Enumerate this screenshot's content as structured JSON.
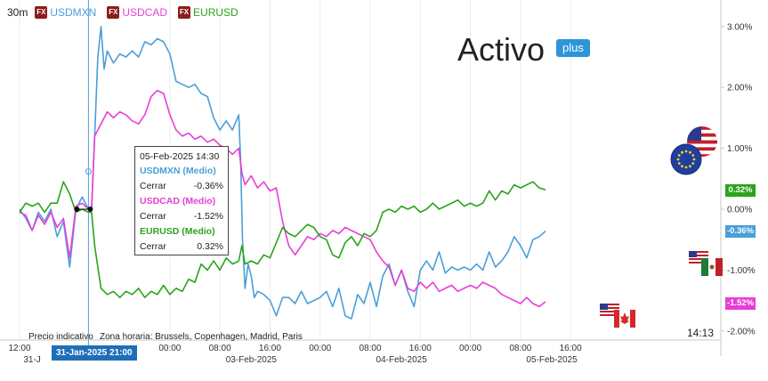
{
  "header": {
    "interval": "30m",
    "fx_badge": "FX",
    "legend": [
      {
        "symbol": "USDMXN",
        "color": "#4a9fd8"
      },
      {
        "symbol": "USDCAD",
        "color": "#e83ed6"
      },
      {
        "symbol": "EURUSD",
        "color": "#2aa31a"
      }
    ]
  },
  "brand": {
    "name": "Activo",
    "badge": "plus"
  },
  "tooltip": {
    "datetime": "05-Feb-2025 14:30",
    "entries": [
      {
        "name": "USDMXN (Medio)",
        "label": "Cerrar",
        "value": "-0.36%",
        "color": "#4a9fd8"
      },
      {
        "name": "USDCAD (Medio)",
        "label": "Cerrar",
        "value": "-1.52%",
        "color": "#e83ed6"
      },
      {
        "name": "EURUSD (Medio)",
        "label": "Cerrar",
        "value": "0.32%",
        "color": "#2aa31a"
      }
    ]
  },
  "footer": {
    "indicative": "Precio indicativo",
    "timezone": "Zona horaria: Brussels, Copenhagen, Madrid, Paris",
    "current_time": "14:13",
    "cursor_label": "31-Jan-2025 21:00"
  },
  "chart_data": {
    "type": "line",
    "y_unit": "%",
    "ylim": [
      -2.1,
      3.2
    ],
    "y_ticks": [
      "3.00%",
      "2.00%",
      "1.00%",
      "0.00%",
      "-1.00%",
      "-2.00%"
    ],
    "y_tick_values": [
      3,
      2,
      1,
      0,
      -1,
      -2
    ],
    "x_range": [
      0,
      112
    ],
    "x_ticks": [
      {
        "label": "12:00",
        "x": 0
      },
      {
        "label": "00:00",
        "x": 24
      },
      {
        "label": "08:00",
        "x": 32
      },
      {
        "label": "16:00",
        "x": 40
      },
      {
        "label": "00:00",
        "x": 48
      },
      {
        "label": "08:00",
        "x": 56
      },
      {
        "label": "16:00",
        "x": 64
      },
      {
        "label": "00:00",
        "x": 72
      },
      {
        "label": "08:00",
        "x": 80
      },
      {
        "label": "16:00",
        "x": 88
      }
    ],
    "x_date_labels": [
      {
        "label": "31-J",
        "x": 2
      },
      {
        "label": "03-Feb-2025",
        "x": 37
      },
      {
        "label": "04-Feb-2025",
        "x": 61
      },
      {
        "label": "05-Feb-2025",
        "x": 85
      }
    ],
    "cursor_x": 11,
    "series": [
      {
        "name": "USDMXN",
        "color": "#4a9fd8",
        "last_label": "-0.36%",
        "points": [
          [
            0,
            0.0
          ],
          [
            1,
            -0.15
          ],
          [
            2,
            -0.35
          ],
          [
            3,
            -0.05
          ],
          [
            4,
            -0.2
          ],
          [
            5,
            0.0
          ],
          [
            6,
            -0.45
          ],
          [
            7,
            -0.2
          ],
          [
            8,
            -0.95
          ],
          [
            9,
            0.0
          ],
          [
            10,
            0.2
          ],
          [
            11,
            0.0
          ],
          [
            11.5,
            0.0
          ],
          [
            12,
            1.2
          ],
          [
            12.5,
            2.5
          ],
          [
            13,
            3.0
          ],
          [
            13.5,
            2.3
          ],
          [
            14,
            2.6
          ],
          [
            15,
            2.4
          ],
          [
            16,
            2.55
          ],
          [
            17,
            2.5
          ],
          [
            18,
            2.6
          ],
          [
            19,
            2.5
          ],
          [
            20,
            2.75
          ],
          [
            21,
            2.7
          ],
          [
            22,
            2.8
          ],
          [
            23,
            2.75
          ],
          [
            24,
            2.55
          ],
          [
            25,
            2.1
          ],
          [
            26,
            2.05
          ],
          [
            27,
            2.0
          ],
          [
            28,
            2.05
          ],
          [
            29,
            1.9
          ],
          [
            30,
            1.85
          ],
          [
            31,
            1.5
          ],
          [
            32,
            1.3
          ],
          [
            33,
            1.45
          ],
          [
            34,
            1.3
          ],
          [
            35,
            1.55
          ],
          [
            35.3,
            0.8
          ],
          [
            35.6,
            -0.5
          ],
          [
            36,
            -1.3
          ],
          [
            36.5,
            -0.9
          ],
          [
            37,
            -1.1
          ],
          [
            37.5,
            -1.45
          ],
          [
            38,
            -1.35
          ],
          [
            39,
            -1.4
          ],
          [
            40,
            -1.5
          ],
          [
            41,
            -1.75
          ],
          [
            42,
            -1.45
          ],
          [
            43,
            -1.45
          ],
          [
            44,
            -1.55
          ],
          [
            45,
            -1.35
          ],
          [
            46,
            -1.55
          ],
          [
            47,
            -1.5
          ],
          [
            48,
            -1.45
          ],
          [
            49,
            -1.35
          ],
          [
            50,
            -1.6
          ],
          [
            51,
            -1.3
          ],
          [
            52,
            -1.75
          ],
          [
            53,
            -1.8
          ],
          [
            54,
            -1.4
          ],
          [
            55,
            -1.55
          ],
          [
            56,
            -1.2
          ],
          [
            57,
            -1.6
          ],
          [
            58,
            -1.1
          ],
          [
            59,
            -0.9
          ],
          [
            60,
            -1.25
          ],
          [
            61,
            -1.0
          ],
          [
            62,
            -1.35
          ],
          [
            63,
            -1.6
          ],
          [
            64,
            -1.0
          ],
          [
            65,
            -0.85
          ],
          [
            66,
            -1.0
          ],
          [
            67,
            -0.7
          ],
          [
            68,
            -1.05
          ],
          [
            69,
            -0.95
          ],
          [
            70,
            -1.0
          ],
          [
            71,
            -0.95
          ],
          [
            72,
            -1.0
          ],
          [
            73,
            -0.9
          ],
          [
            74,
            -1.0
          ],
          [
            75,
            -0.7
          ],
          [
            76,
            -0.95
          ],
          [
            77,
            -0.85
          ],
          [
            78,
            -0.7
          ],
          [
            79,
            -0.45
          ],
          [
            80,
            -0.6
          ],
          [
            81,
            -0.8
          ],
          [
            82,
            -0.5
          ],
          [
            83,
            -0.45
          ],
          [
            84,
            -0.36
          ]
        ]
      },
      {
        "name": "USDCAD",
        "color": "#e83ed6",
        "last_label": "-1.52%",
        "points": [
          [
            0,
            -0.05
          ],
          [
            1,
            -0.1
          ],
          [
            2,
            -0.35
          ],
          [
            3,
            -0.1
          ],
          [
            4,
            -0.25
          ],
          [
            5,
            -0.05
          ],
          [
            6,
            -0.3
          ],
          [
            7,
            -0.15
          ],
          [
            8,
            -0.8
          ],
          [
            9,
            0.05
          ],
          [
            10,
            0.1
          ],
          [
            11,
            0.0
          ],
          [
            11.5,
            0.0
          ],
          [
            12,
            1.2
          ],
          [
            13,
            1.4
          ],
          [
            14,
            1.6
          ],
          [
            15,
            1.5
          ],
          [
            16,
            1.6
          ],
          [
            17,
            1.55
          ],
          [
            18,
            1.45
          ],
          [
            19,
            1.4
          ],
          [
            20,
            1.55
          ],
          [
            21,
            1.85
          ],
          [
            22,
            1.95
          ],
          [
            23,
            1.9
          ],
          [
            24,
            1.55
          ],
          [
            25,
            1.3
          ],
          [
            26,
            1.2
          ],
          [
            27,
            1.25
          ],
          [
            28,
            1.15
          ],
          [
            29,
            1.2
          ],
          [
            30,
            1.1
          ],
          [
            31,
            1.15
          ],
          [
            32,
            1.05
          ],
          [
            33,
            1.0
          ],
          [
            34,
            0.9
          ],
          [
            35,
            1.0
          ],
          [
            35.5,
            0.6
          ],
          [
            36,
            0.4
          ],
          [
            37,
            0.55
          ],
          [
            38,
            0.35
          ],
          [
            39,
            0.45
          ],
          [
            40,
            0.3
          ],
          [
            41,
            0.35
          ],
          [
            42,
            -0.2
          ],
          [
            43,
            -0.6
          ],
          [
            44,
            -0.75
          ],
          [
            45,
            -0.6
          ],
          [
            46,
            -0.45
          ],
          [
            47,
            -0.5
          ],
          [
            48,
            -0.4
          ],
          [
            49,
            -0.45
          ],
          [
            50,
            -0.35
          ],
          [
            51,
            -0.4
          ],
          [
            52,
            -0.3
          ],
          [
            53,
            -0.35
          ],
          [
            54,
            -0.4
          ],
          [
            55,
            -0.45
          ],
          [
            56,
            -0.5
          ],
          [
            57,
            -0.7
          ],
          [
            58,
            -0.85
          ],
          [
            59,
            -0.95
          ],
          [
            60,
            -1.25
          ],
          [
            61,
            -1.0
          ],
          [
            62,
            -1.3
          ],
          [
            63,
            -1.35
          ],
          [
            64,
            -1.2
          ],
          [
            65,
            -1.3
          ],
          [
            66,
            -1.2
          ],
          [
            67,
            -1.35
          ],
          [
            68,
            -1.3
          ],
          [
            69,
            -1.25
          ],
          [
            70,
            -1.35
          ],
          [
            71,
            -1.3
          ],
          [
            72,
            -1.25
          ],
          [
            73,
            -1.3
          ],
          [
            74,
            -1.2
          ],
          [
            75,
            -1.25
          ],
          [
            76,
            -1.3
          ],
          [
            77,
            -1.4
          ],
          [
            78,
            -1.45
          ],
          [
            79,
            -1.5
          ],
          [
            80,
            -1.55
          ],
          [
            81,
            -1.45
          ],
          [
            82,
            -1.55
          ],
          [
            83,
            -1.6
          ],
          [
            84,
            -1.52
          ]
        ]
      },
      {
        "name": "EURUSD",
        "color": "#2aa31a",
        "last_label": "0.32%",
        "points": [
          [
            0,
            -0.05
          ],
          [
            1,
            0.1
          ],
          [
            2,
            0.05
          ],
          [
            3,
            0.1
          ],
          [
            4,
            -0.05
          ],
          [
            5,
            0.1
          ],
          [
            6,
            0.1
          ],
          [
            7,
            0.45
          ],
          [
            8,
            0.25
          ],
          [
            9,
            -0.05
          ],
          [
            10,
            0.0
          ],
          [
            11,
            -0.05
          ],
          [
            11.5,
            -0.05
          ],
          [
            12,
            -0.6
          ],
          [
            13,
            -1.3
          ],
          [
            14,
            -1.4
          ],
          [
            15,
            -1.35
          ],
          [
            16,
            -1.45
          ],
          [
            17,
            -1.35
          ],
          [
            18,
            -1.4
          ],
          [
            19,
            -1.3
          ],
          [
            20,
            -1.45
          ],
          [
            21,
            -1.35
          ],
          [
            22,
            -1.4
          ],
          [
            23,
            -1.25
          ],
          [
            24,
            -1.4
          ],
          [
            25,
            -1.3
          ],
          [
            26,
            -1.35
          ],
          [
            27,
            -1.15
          ],
          [
            28,
            -1.2
          ],
          [
            29,
            -0.9
          ],
          [
            30,
            -1.0
          ],
          [
            31,
            -0.85
          ],
          [
            32,
            -1.0
          ],
          [
            33,
            -0.8
          ],
          [
            34,
            -0.9
          ],
          [
            35,
            -0.85
          ],
          [
            35.5,
            -0.6
          ],
          [
            36,
            -0.9
          ],
          [
            37,
            -0.85
          ],
          [
            38,
            -0.9
          ],
          [
            39,
            -0.75
          ],
          [
            40,
            -0.8
          ],
          [
            41,
            -0.55
          ],
          [
            42,
            -0.3
          ],
          [
            43,
            -0.4
          ],
          [
            44,
            -0.45
          ],
          [
            45,
            -0.35
          ],
          [
            46,
            -0.25
          ],
          [
            47,
            -0.3
          ],
          [
            48,
            -0.45
          ],
          [
            49,
            -0.5
          ],
          [
            50,
            -0.75
          ],
          [
            51,
            -0.8
          ],
          [
            52,
            -0.55
          ],
          [
            53,
            -0.45
          ],
          [
            54,
            -0.6
          ],
          [
            55,
            -0.4
          ],
          [
            56,
            -0.45
          ],
          [
            57,
            -0.35
          ],
          [
            58,
            -0.05
          ],
          [
            59,
            0.0
          ],
          [
            60,
            -0.05
          ],
          [
            61,
            0.05
          ],
          [
            62,
            0.0
          ],
          [
            63,
            0.05
          ],
          [
            64,
            -0.05
          ],
          [
            65,
            0.0
          ],
          [
            66,
            0.1
          ],
          [
            67,
            0.0
          ],
          [
            68,
            0.05
          ],
          [
            69,
            0.1
          ],
          [
            70,
            0.15
          ],
          [
            71,
            0.05
          ],
          [
            72,
            0.1
          ],
          [
            73,
            0.05
          ],
          [
            74,
            0.1
          ],
          [
            75,
            0.3
          ],
          [
            76,
            0.15
          ],
          [
            77,
            0.3
          ],
          [
            78,
            0.25
          ],
          [
            79,
            0.4
          ],
          [
            80,
            0.35
          ],
          [
            81,
            0.4
          ],
          [
            82,
            0.45
          ],
          [
            83,
            0.35
          ],
          [
            84,
            0.32
          ]
        ]
      }
    ]
  }
}
